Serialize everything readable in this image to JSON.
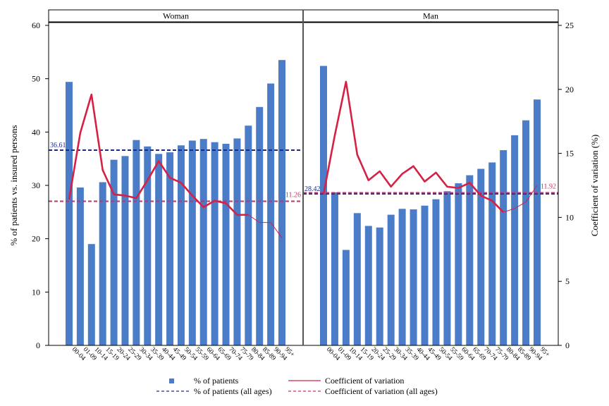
{
  "chart_data": {
    "type": "bar",
    "categories": [
      "00-04",
      "01-09",
      "10-14",
      "15-19",
      "20-24",
      "25-29",
      "30-34",
      "35-39",
      "40-44",
      "45-49",
      "50-54",
      "55-59",
      "60-64",
      "65-69",
      "70-74",
      "75-79",
      "80-84",
      "85-89",
      "90-94",
      "95+"
    ],
    "panels": [
      {
        "title": "Woman",
        "bar_values": [
          49.4,
          29.6,
          19.0,
          30.6,
          34.8,
          35.5,
          38.5,
          37.3,
          35.9,
          36.2,
          37.5,
          38.4,
          38.7,
          38.1,
          37.8,
          38.8,
          41.2,
          44.7,
          49.1,
          53.5
        ],
        "cv_values": [
          11.4,
          16.6,
          19.6,
          13.7,
          11.8,
          11.7,
          11.5,
          12.9,
          14.4,
          13.1,
          12.7,
          11.7,
          10.8,
          11.3,
          11.1,
          10.2,
          10.2,
          9.6,
          9.6,
          8.4
        ],
        "patients_all_ages": 36.61,
        "patients_all_ages_label": "36.61",
        "cv_all_ages": 11.26,
        "cv_all_ages_label": "11.26"
      },
      {
        "title": "Man",
        "bar_values": [
          52.4,
          28.7,
          17.9,
          24.8,
          22.4,
          22.1,
          24.5,
          25.6,
          25.5,
          26.2,
          27.4,
          28.9,
          30.4,
          31.9,
          33.1,
          34.3,
          36.6,
          39.4,
          42.2,
          46.1
        ],
        "cv_values": [
          11.8,
          16.4,
          20.6,
          14.9,
          12.9,
          13.6,
          12.4,
          13.4,
          14.0,
          12.8,
          13.5,
          12.4,
          12.3,
          12.7,
          11.7,
          11.3,
          10.4,
          10.7,
          11.2,
          12.5
        ],
        "patients_all_ages": 28.42,
        "patients_all_ages_label": "28.42",
        "cv_all_ages": 11.92,
        "cv_all_ages_label": "11.92"
      }
    ],
    "y_left": {
      "label": "% of patients vs. insured persons",
      "lim": [
        0,
        60
      ],
      "ticks": [
        "0",
        "10",
        "20",
        "30",
        "40",
        "50",
        "60"
      ]
    },
    "y_right": {
      "label": "Coefficient of variation (%)",
      "lim": [
        0,
        25
      ],
      "ticks": [
        "0",
        "5",
        "10",
        "15",
        "20",
        "25"
      ]
    },
    "legend": {
      "placement": "bottom",
      "bars": "% of patients",
      "cv": "Coefficient of variation",
      "patients_all": "% of patients (all ages)",
      "cv_all": "Coefficient of variation (all ages)"
    },
    "colors": {
      "bar": "#4a7cc7",
      "cv": "#d62045",
      "patients_ref": "#1b2a8a",
      "cv_ref": "#c9306a"
    }
  }
}
